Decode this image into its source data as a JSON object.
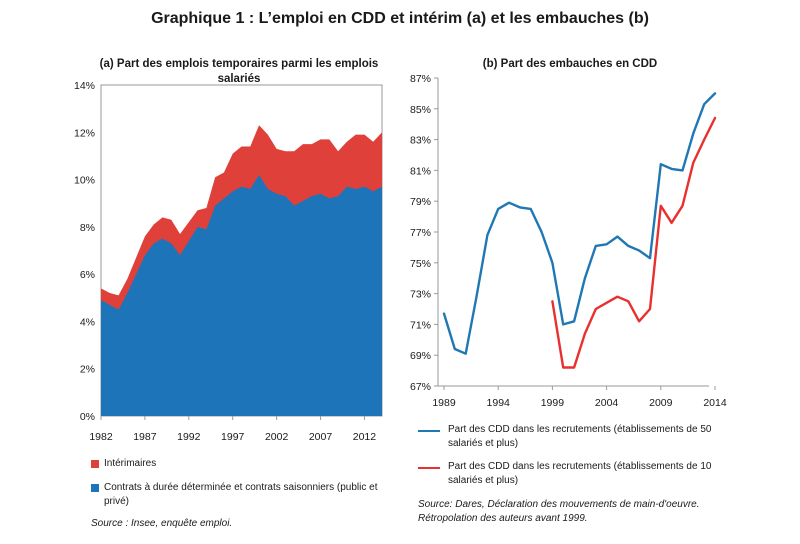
{
  "title": "Graphique 1 : L’emploi en CDD et intérim (a) et les embauches (b)",
  "colors": {
    "red": "#e0403a",
    "blue": "#1e74b8",
    "axis": "#888888",
    "line_blue": "#1f77b4",
    "line_red": "#e8312f"
  },
  "chart_a": {
    "title": "(a) Part des emplois temporaires parmi les emplois salariés",
    "legend": {
      "interim": "Intérimaires",
      "cdd": "Contrats à durée déterminée et contrats saisonniers (public et privé)"
    },
    "source": "Source : Insee, enquête emploi."
  },
  "chart_b": {
    "title": "(b) Part des embauches en CDD",
    "legend": {
      "s1": "Part des CDD dans les recrutements (établissements de 50 salariés et plus)",
      "s2": "Part des CDD dans les recrutements (établissements de 10 salariés et plus)"
    },
    "source": "Source: Dares, Déclaration des mouvements de main-d'oeuvre. Rétropolation des auteurs avant 1999."
  },
  "chart_data": [
    {
      "type": "area",
      "title": "(a) Part des emplois temporaires parmi les emplois salariés",
      "x": [
        1982,
        1983,
        1984,
        1985,
        1986,
        1987,
        1988,
        1989,
        1990,
        1991,
        1992,
        1993,
        1994,
        1995,
        1996,
        1997,
        1998,
        1999,
        2000,
        2001,
        2002,
        2003,
        2004,
        2005,
        2006,
        2007,
        2008,
        2009,
        2010,
        2011,
        2012,
        2013,
        2014
      ],
      "xticks": [
        "1982",
        "1987",
        "1992",
        "1997",
        "2002",
        "2007",
        "2012"
      ],
      "yticks": [
        "0%",
        "2%",
        "4%",
        "6%",
        "8%",
        "10%",
        "12%",
        "14%"
      ],
      "ylim": [
        0,
        14
      ],
      "stacked": true,
      "series": [
        {
          "name": "Contrats à durée déterminée et contrats saisonniers (public et privé)",
          "values": [
            4.9,
            4.7,
            4.5,
            5.2,
            6.0,
            6.8,
            7.3,
            7.5,
            7.3,
            6.8,
            7.4,
            8.0,
            7.9,
            8.9,
            9.2,
            9.5,
            9.7,
            9.6,
            10.2,
            9.6,
            9.4,
            9.3,
            8.9,
            9.1,
            9.3,
            9.4,
            9.2,
            9.3,
            9.7,
            9.6,
            9.7,
            9.5,
            9.7
          ]
        },
        {
          "name": "Intérimaires",
          "values": [
            0.5,
            0.5,
            0.6,
            0.6,
            0.7,
            0.8,
            0.8,
            0.9,
            1.0,
            0.9,
            0.8,
            0.7,
            0.9,
            1.2,
            1.1,
            1.6,
            1.7,
            1.8,
            2.1,
            2.3,
            1.9,
            1.9,
            2.3,
            2.4,
            2.2,
            2.3,
            2.5,
            1.9,
            1.9,
            2.3,
            2.2,
            2.1,
            2.3
          ]
        }
      ]
    },
    {
      "type": "line",
      "title": "(b) Part des embauches en CDD",
      "xticks": [
        "1989",
        "1994",
        "1999",
        "2004",
        "2009",
        "2014"
      ],
      "yticks": [
        "67%",
        "69%",
        "71%",
        "73%",
        "75%",
        "77%",
        "79%",
        "81%",
        "83%",
        "85%",
        "87%"
      ],
      "xlim": [
        1989,
        2014
      ],
      "ylim": [
        67,
        87
      ],
      "series": [
        {
          "name": "Part des CDD dans les recrutements (établissements de 50 salariés et plus)",
          "x": [
            1989,
            1990,
            1991,
            1992,
            1993,
            1994,
            1995,
            1996,
            1997,
            1998,
            1999,
            2000,
            2001,
            2002,
            2003,
            2004,
            2005,
            2006,
            2007,
            2008,
            2009,
            2010,
            2011,
            2012,
            2013,
            2014
          ],
          "values": [
            71.7,
            69.4,
            69.1,
            72.8,
            76.8,
            78.5,
            78.9,
            78.6,
            78.5,
            77.0,
            75.0,
            71.0,
            71.2,
            74.0,
            76.1,
            76.2,
            76.7,
            76.1,
            75.8,
            75.3,
            81.4,
            81.1,
            81.0,
            83.4,
            85.3,
            86.0
          ]
        },
        {
          "name": "Part des CDD dans les recrutements (établissements de 10 salariés et plus)",
          "x": [
            1999,
            2000,
            2001,
            2002,
            2003,
            2004,
            2005,
            2006,
            2007,
            2008,
            2009,
            2010,
            2011,
            2012,
            2013,
            2014
          ],
          "values": [
            72.5,
            68.2,
            68.2,
            70.4,
            72.0,
            72.4,
            72.8,
            72.5,
            71.2,
            72.0,
            78.7,
            77.6,
            78.7,
            81.5,
            83.0,
            84.4
          ]
        }
      ]
    }
  ]
}
